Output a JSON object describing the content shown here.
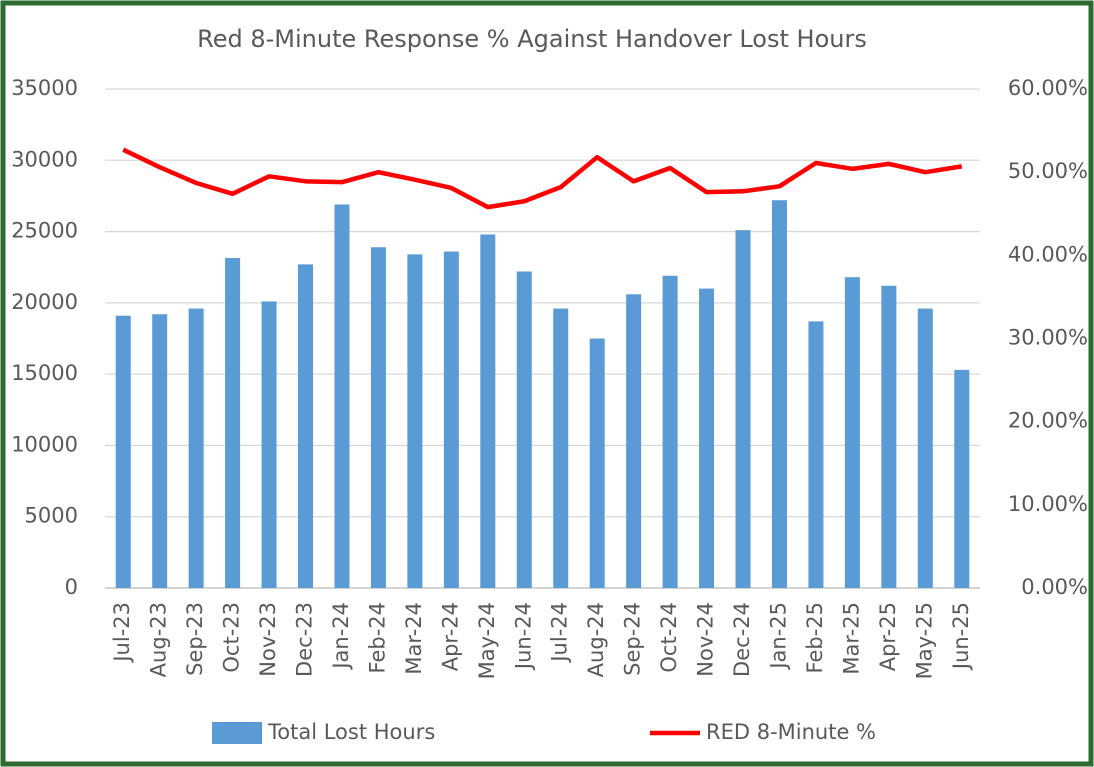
{
  "chart_data": {
    "type": "bar-line",
    "title": "Red 8-Minute Response % Against Handover Lost Hours",
    "categories": [
      "Jul-23",
      "Aug-23",
      "Sep-23",
      "Oct-23",
      "Nov-23",
      "Dec-23",
      "Jan-24",
      "Feb-24",
      "Mar-24",
      "Apr-24",
      "May-24",
      "Jun-24",
      "Jul-24",
      "Aug-24",
      "Sep-24",
      "Oct-24",
      "Nov-24",
      "Dec-24",
      "Jan-25",
      "Feb-25",
      "Mar-25",
      "Apr-25",
      "May-25",
      "Jun-25"
    ],
    "series": [
      {
        "name": "Total Lost Hours",
        "type": "bar",
        "color": "#5b9bd5",
        "values": [
          19100,
          19200,
          19600,
          23150,
          20100,
          22700,
          26900,
          23900,
          23400,
          23600,
          24800,
          22200,
          19600,
          17500,
          20600,
          21900,
          21000,
          25100,
          27200,
          18700,
          21800,
          21200,
          19600,
          15300
        ]
      },
      {
        "name": "RED 8-Minute %",
        "type": "line",
        "color": "#ff0000",
        "axis": "y2",
        "values": [
          52.7,
          50.6,
          48.7,
          47.4,
          49.5,
          48.9,
          48.8,
          50.0,
          49.1,
          48.1,
          45.8,
          46.5,
          48.2,
          51.8,
          48.9,
          50.5,
          47.6,
          47.7,
          48.3,
          51.1,
          50.4,
          51.0,
          50.0,
          50.7
        ]
      }
    ],
    "ylim": [
      0,
      35000
    ],
    "yticks": [
      0,
      5000,
      10000,
      15000,
      20000,
      25000,
      30000,
      35000
    ],
    "y2lim": [
      0,
      60
    ],
    "y2ticks": [
      {
        "value": 0,
        "label": "0.00%"
      },
      {
        "value": 10,
        "label": "10.00%"
      },
      {
        "value": 20,
        "label": "20.00%"
      },
      {
        "value": 30,
        "label": "30.00%"
      },
      {
        "value": 40,
        "label": "40.00%"
      },
      {
        "value": 50,
        "label": "50.00%"
      },
      {
        "value": 60,
        "label": "60.00%"
      }
    ],
    "grid": true,
    "legend": "bottom"
  }
}
